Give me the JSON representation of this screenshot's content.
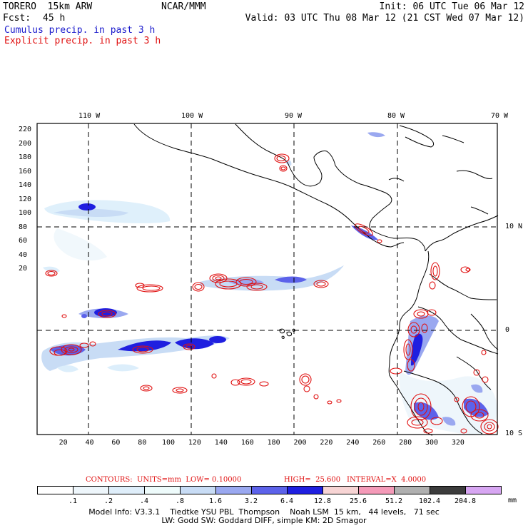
{
  "header": {
    "model": "TORERO  15km ARW",
    "org": "NCAR/MMM",
    "init": "Init: 06 UTC Tue 06 Mar 12",
    "fcst_label": "Fcst:",
    "fcst_value": "45 h",
    "valid": "Valid: 03 UTC Thu 08 Mar 12 (21 CST Wed 07 Mar 12)",
    "legend_cumulus": "Cumulus precip. in past 3 h",
    "legend_explicit": "Explicit precip. in past 3 h"
  },
  "colors": {
    "cumulus_legend": "#1a1acc",
    "explicit_legend": "#e01010",
    "contour": "#e01010",
    "coast": "#000000"
  },
  "map": {
    "lon_labels": [
      "110 W",
      "100 W",
      "90 W",
      "80 W",
      "70 W"
    ],
    "lat_labels": [
      "10 N",
      "0",
      "10 S"
    ],
    "y_ticks": [
      "220",
      "200",
      "180",
      "160",
      "140",
      "120",
      "100",
      "80",
      "60",
      "40",
      "20"
    ],
    "x_ticks": [
      "20",
      "40",
      "60",
      "80",
      "100",
      "120",
      "140",
      "160",
      "180",
      "200",
      "220",
      "240",
      "260",
      "280",
      "300",
      "320"
    ]
  },
  "contour_info": {
    "contours": "CONTOURS:  UNITS=mm  LOW= 0.10000",
    "high": "HIGH=  25.600",
    "interval": "INTERVAL=X  4.0000"
  },
  "colorbar": {
    "labels": [
      ".1",
      ".2",
      ".4",
      ".8",
      "1.6",
      "3.2",
      "6.4",
      "12.8",
      "25.6",
      "51.2",
      "102.4",
      "204.8"
    ],
    "unit": "mm",
    "colors": [
      "#ffffff",
      "#eef6fb",
      "#dfeefa",
      "#eefbfb",
      "#c8dcf5",
      "#9aa8f0",
      "#5c62ea",
      "#1f1fe0",
      "#f7d4d4",
      "#f49ab8",
      "#b0b0b0",
      "#3c3c3c",
      "#d7a6f2"
    ]
  },
  "footer": {
    "line1": "Model Info: V3.3.1    Tiedtke YSU PBL  Thompson    Noah LSM  15 km,   44 levels,   71 sec",
    "line2": "LW: Godd SW: Goddard DIFF, simple KM: 2D Smagor"
  }
}
